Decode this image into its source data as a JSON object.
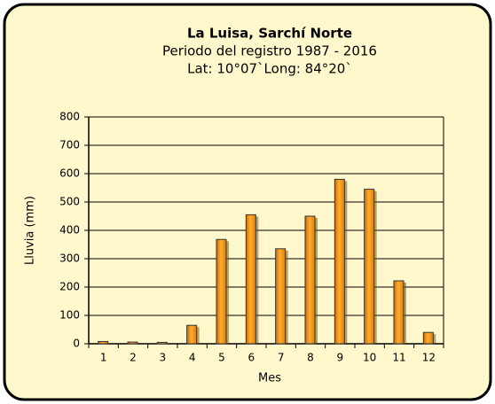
{
  "chart_data": {
    "type": "bar",
    "title": "La Luisa, Sarchí Norte",
    "subtitle": "Periodo del registro 1987 - 2016",
    "subtitle2": "Lat: 10°07`Long: 84°20`",
    "x_label": "Mes",
    "y_label": "Lluvia (mm)",
    "categories": [
      "1",
      "2",
      "3",
      "4",
      "5",
      "6",
      "7",
      "8",
      "9",
      "10",
      "11",
      "12"
    ],
    "values": [
      8,
      6,
      5,
      65,
      368,
      455,
      335,
      450,
      580,
      545,
      222,
      40
    ],
    "color": "#ff9900",
    "ylim": [
      0,
      800
    ],
    "yticks": [
      0,
      100,
      200,
      300,
      400,
      500,
      600,
      700,
      800
    ],
    "grid": true
  }
}
